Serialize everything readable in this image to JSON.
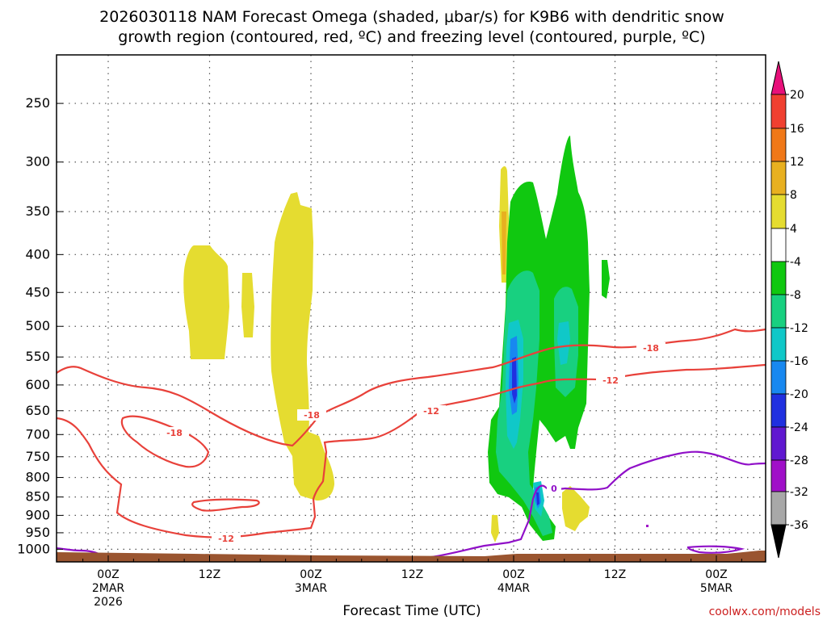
{
  "chart_data": {
    "type": "time-height",
    "title_line1": "2026030118 NAM Forecast Omega (shaded, μbar/s) for K9B6 with dendritic snow",
    "title_line2": "growth region (contoured, red, ºC) and freezing level (contoured, purple, ºC)",
    "xlabel": "Forecast Time (UTC)",
    "ylabel": "",
    "y_ticks": [
      "250",
      "300",
      "350",
      "400",
      "450",
      "500",
      "550",
      "600",
      "650",
      "700",
      "750",
      "800",
      "850",
      "900",
      "950",
      "1000"
    ],
    "x_ticks": [
      {
        "line1": "00Z",
        "line2": "2MAR",
        "line3": "2026"
      },
      {
        "line1": "12Z",
        "line2": "",
        "line3": ""
      },
      {
        "line1": "00Z",
        "line2": "3MAR",
        "line3": ""
      },
      {
        "line1": "12Z",
        "line2": "",
        "line3": ""
      },
      {
        "line1": "00Z",
        "line2": "4MAR",
        "line3": ""
      },
      {
        "line1": "12Z",
        "line2": "",
        "line3": ""
      },
      {
        "line1": "00Z",
        "line2": "5MAR",
        "line3": ""
      }
    ],
    "colorbar": {
      "ticks": [
        "20",
        "16",
        "12",
        "8",
        "4",
        "-4",
        "-8",
        "-12",
        "-16",
        "-20",
        "-24",
        "-28",
        "-32",
        "-36"
      ],
      "colors": [
        "#e8107a",
        "#f04030",
        "#f07818",
        "#e8b020",
        "#e5dc30",
        "#ffffff",
        "#10c810",
        "#18d080",
        "#10c8c8",
        "#1888f0",
        "#2030e0",
        "#6018d0",
        "#a010c8",
        "#a8a8a8",
        "#000000"
      ]
    },
    "contour_labels": {
      "red_dgz": [
        "-18",
        "-12",
        "-18",
        "-12",
        "-12",
        "-18",
        "-12"
      ],
      "purple_freezing": [
        "0"
      ]
    },
    "series": [
      {
        "name": "Omega shaded",
        "units": "μbar/s",
        "range": [
          -24,
          8
        ]
      },
      {
        "name": "Dendritic growth region",
        "units": "ºC",
        "levels": [
          -18,
          -12
        ]
      },
      {
        "name": "Freezing level",
        "units": "ºC",
        "levels": [
          0
        ]
      }
    ],
    "credit": "coolwx.com/models"
  }
}
